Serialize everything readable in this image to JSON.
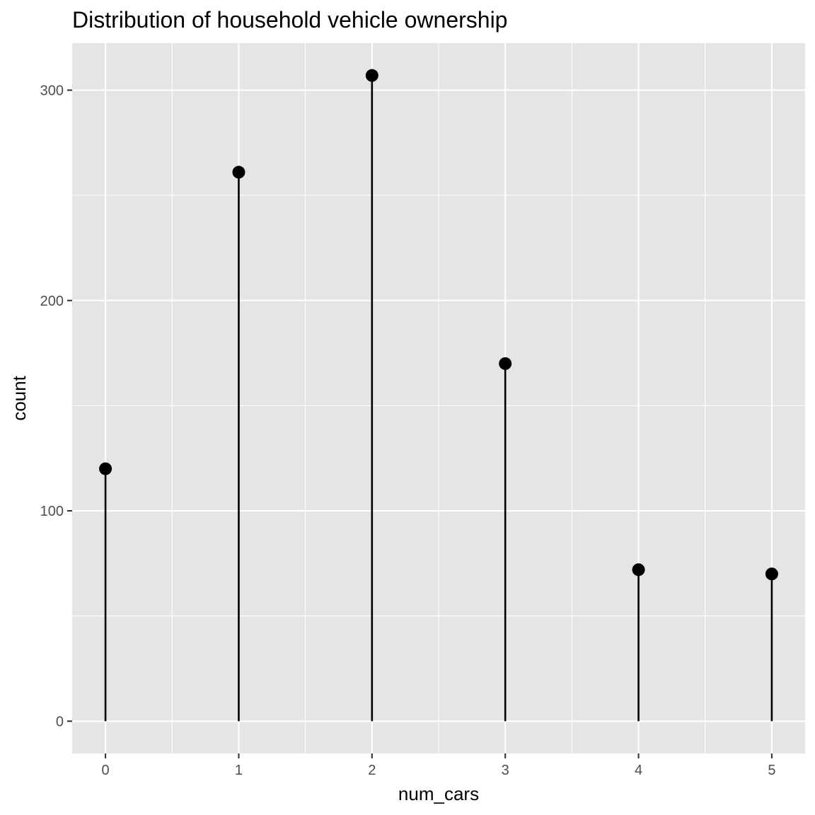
{
  "chart_data": {
    "type": "lollipop",
    "title": "Distribution of household vehicle ownership",
    "xlabel": "num_cars",
    "ylabel": "count",
    "x": [
      0,
      1,
      2,
      3,
      4,
      5
    ],
    "values": [
      120,
      261,
      307,
      170,
      72,
      70
    ],
    "x_ticks": [
      "0",
      "1",
      "2",
      "3",
      "4",
      "5"
    ],
    "y_ticks": [
      "0",
      "100",
      "200",
      "300"
    ],
    "y_tick_values": [
      0,
      100,
      200,
      300
    ],
    "y_minor_values": [
      50,
      150,
      250
    ],
    "xlim": [
      -0.25,
      5.25
    ],
    "ylim": [
      -15.35,
      322.35
    ],
    "grid": true,
    "legend": "none",
    "colors": {
      "panel": "#e5e5e5",
      "grid": "#ffffff",
      "marks": "#000000",
      "tick_text": "#4d4d4d"
    }
  }
}
